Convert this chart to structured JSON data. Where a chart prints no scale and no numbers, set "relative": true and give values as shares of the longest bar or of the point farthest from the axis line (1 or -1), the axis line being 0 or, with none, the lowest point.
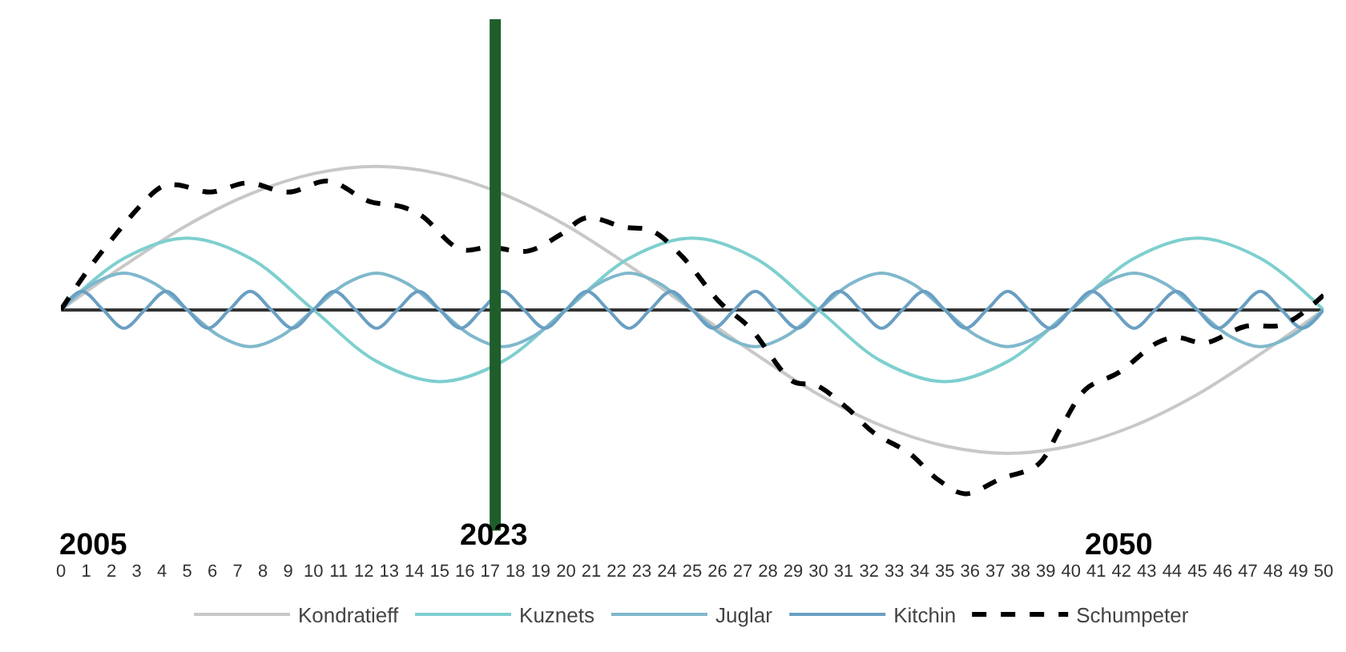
{
  "chart_data": {
    "type": "line",
    "relative": true,
    "tick_labels": "x",
    "legend": "bottom",
    "marker": "none",
    "xlim": [
      0,
      50
    ],
    "xticks": [
      0,
      1,
      2,
      3,
      4,
      5,
      6,
      7,
      8,
      9,
      10,
      11,
      12,
      13,
      14,
      15,
      16,
      17,
      18,
      19,
      20,
      21,
      22,
      23,
      24,
      25,
      26,
      27,
      28,
      29,
      30,
      31,
      32,
      33,
      34,
      35,
      36,
      37,
      38,
      39,
      40,
      41,
      42,
      43,
      44,
      45,
      46,
      47,
      48,
      49,
      50
    ],
    "ref_lines": [
      {
        "axis": "x",
        "value": 17.2,
        "color": "#1f5e2a",
        "line_style": "solid"
      }
    ],
    "annotations": [
      "2005",
      "2023",
      "2050"
    ],
    "series": [
      {
        "name": "Kondratieff",
        "color": "#c8c8c8",
        "line_style": "solid",
        "x": [
          0,
          2.5,
          5,
          7.5,
          10,
          12.5,
          15,
          17.5,
          20,
          22.5,
          25,
          27.5,
          30,
          32.5,
          35,
          37.5,
          40,
          42.5,
          45,
          47.5,
          50
        ],
        "values": [
          0,
          0.24,
          0.46,
          0.63,
          0.74,
          0.78,
          0.74,
          0.63,
          0.46,
          0.24,
          0,
          -0.24,
          -0.46,
          -0.63,
          -0.74,
          -0.78,
          -0.74,
          -0.63,
          -0.46,
          -0.24,
          0
        ]
      },
      {
        "name": "Kuznets",
        "color": "#7ecfcf",
        "line_style": "solid",
        "x": [
          0,
          2.5,
          5,
          7.5,
          10,
          12.5,
          15,
          17.5,
          20,
          22.5,
          25,
          27.5,
          30,
          32.5,
          35,
          37.5,
          40,
          42.5,
          45,
          47.5,
          50
        ],
        "values": [
          0,
          0.28,
          0.39,
          0.28,
          0,
          -0.28,
          -0.39,
          -0.28,
          0,
          0.28,
          0.39,
          0.28,
          0,
          -0.28,
          -0.39,
          -0.28,
          0,
          0.28,
          0.39,
          0.28,
          0
        ]
      },
      {
        "name": "Juglar",
        "color": "#7fb8cc",
        "line_style": "solid",
        "x": [
          0,
          1.25,
          2.5,
          3.75,
          5,
          6.25,
          7.5,
          8.75,
          10,
          11.25,
          12.5,
          13.75,
          15,
          16.25,
          17.5,
          18.75,
          20,
          21.25,
          22.5,
          23.75,
          25,
          26.25,
          27.5,
          28.75,
          30,
          31.25,
          32.5,
          33.75,
          35,
          36.25,
          37.5,
          38.75,
          40,
          41.25,
          42.5,
          43.75,
          45,
          46.25,
          47.5,
          48.75,
          50
        ],
        "values": [
          0,
          0.14,
          0.2,
          0.14,
          0,
          -0.14,
          -0.2,
          -0.14,
          0,
          0.14,
          0.2,
          0.14,
          0,
          -0.14,
          -0.2,
          -0.14,
          0,
          0.14,
          0.2,
          0.14,
          0,
          -0.14,
          -0.2,
          -0.14,
          0,
          0.14,
          0.2,
          0.14,
          0,
          -0.14,
          -0.2,
          -0.14,
          0,
          0.14,
          0.2,
          0.14,
          0,
          -0.14,
          -0.2,
          -0.14,
          0
        ]
      },
      {
        "name": "Kitchin",
        "color": "#6a9fc2",
        "line_style": "solid",
        "x": [
          0,
          0.83,
          1.67,
          2.5,
          3.33,
          4.17,
          5,
          5.83,
          6.67,
          7.5,
          8.33,
          9.17,
          10,
          10.83,
          11.67,
          12.5,
          13.33,
          14.17,
          15,
          15.83,
          16.67,
          17.5,
          18.33,
          19.17,
          20,
          20.83,
          21.67,
          22.5,
          23.33,
          24.17,
          25,
          25.83,
          26.67,
          27.5,
          28.33,
          29.17,
          30,
          30.83,
          31.67,
          32.5,
          33.33,
          34.17,
          35,
          35.83,
          36.67,
          37.5,
          38.33,
          39.17,
          40,
          40.83,
          41.67,
          42.5,
          43.33,
          44.17,
          45,
          45.83,
          46.67,
          47.5,
          48.33,
          49.17,
          50
        ],
        "values": [
          0,
          0.1,
          0,
          -0.1,
          0,
          0.1,
          0,
          -0.1,
          0,
          0.1,
          0,
          -0.1,
          0,
          0.1,
          0,
          -0.1,
          0,
          0.1,
          0,
          -0.1,
          0,
          0.1,
          0,
          -0.1,
          0,
          0.1,
          0,
          -0.1,
          0,
          0.1,
          0,
          -0.1,
          0,
          0.1,
          0,
          -0.1,
          0,
          0.1,
          0,
          -0.1,
          0,
          0.1,
          0,
          -0.1,
          0,
          0.1,
          0,
          -0.1,
          0,
          0.1,
          0,
          -0.1,
          0,
          0.1,
          0,
          -0.1,
          0,
          0.1,
          0,
          -0.1,
          0
        ]
      },
      {
        "name": "Schumpeter",
        "color": "#000000",
        "line_style": "dashed",
        "x": [
          0,
          1.7,
          4.0,
          4.6,
          5.9,
          7.4,
          9.0,
          10.6,
          12.2,
          13.5,
          14.3,
          15.8,
          17.0,
          18.5,
          19.8,
          20.8,
          22.3,
          23.4,
          24.6,
          26.1,
          27.3,
          29.0,
          29.9,
          31.1,
          32.2,
          33.6,
          34.7,
          35.8,
          37.2,
          38.7,
          39.6,
          40.6,
          41.9,
          43.4,
          44.2,
          45.3,
          46.9,
          48.4,
          50
        ],
        "values": [
          0,
          0.33,
          0.67,
          0.68,
          0.64,
          0.69,
          0.64,
          0.7,
          0.59,
          0.56,
          0.51,
          0.33,
          0.34,
          0.32,
          0.41,
          0.5,
          0.45,
          0.43,
          0.29,
          0.04,
          -0.1,
          -0.39,
          -0.41,
          -0.53,
          -0.67,
          -0.78,
          -0.92,
          -1.0,
          -0.92,
          -0.84,
          -0.64,
          -0.43,
          -0.34,
          -0.18,
          -0.15,
          -0.18,
          -0.09,
          -0.08,
          0.08
        ]
      }
    ]
  }
}
